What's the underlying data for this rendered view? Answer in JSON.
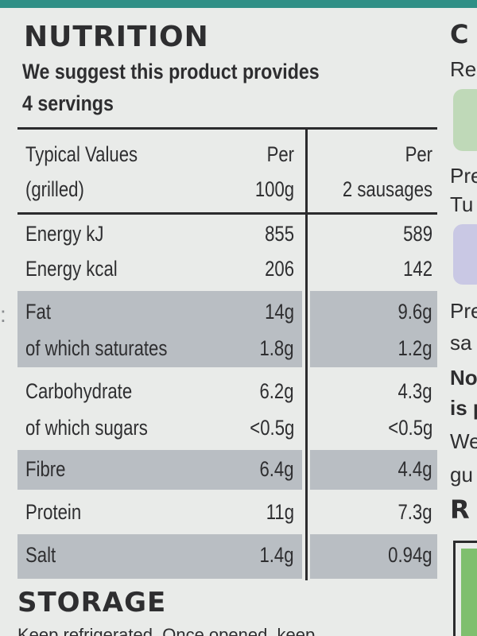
{
  "label": {
    "title": "NUTRITION",
    "subtitle_line1": "We suggest this product provides",
    "subtitle_line2": "4 servings",
    "headers": {
      "col0_line1": "Typical Values",
      "col0_line2": "(grilled)",
      "col1_line1": "Per",
      "col1_line2": "100g",
      "col2_line1": "Per",
      "col2_line2": "2 sausages"
    },
    "rows": [
      {
        "label": "Energy kJ",
        "per100": "855",
        "perServing": "589"
      },
      {
        "label": "Energy kcal",
        "per100": "206",
        "perServing": "142"
      },
      {
        "label": "Fat",
        "per100": "14g",
        "perServing": "9.6g"
      },
      {
        "label": "of which saturates",
        "per100": "1.8g",
        "perServing": "1.2g"
      },
      {
        "label": "Carbohydrate",
        "per100": "6.2g",
        "perServing": "4.3g"
      },
      {
        "label": "of which sugars",
        "per100": "<0.5g",
        "perServing": "<0.5g"
      },
      {
        "label": "Fibre",
        "per100": "6.4g",
        "perServing": "4.4g"
      },
      {
        "label": "Protein",
        "per100": "11g",
        "perServing": "7.3g"
      },
      {
        "label": "Salt",
        "per100": "1.4g",
        "perServing": "0.94g"
      }
    ],
    "storage_title": "STORAGE",
    "storage_text": "Keep refrigerated. Once opened, keep"
  },
  "right_panel": {
    "heading": "C",
    "lines": [
      "Re",
      "Pre",
      "Tu",
      "Pre",
      "sa",
      "No",
      "is p",
      "We",
      "gu"
    ],
    "heading2": "R"
  },
  "colors": {
    "background": "#e9ebe9",
    "band": "#b9bec3",
    "teal": "#2f8f86",
    "text": "#2e2e30"
  }
}
